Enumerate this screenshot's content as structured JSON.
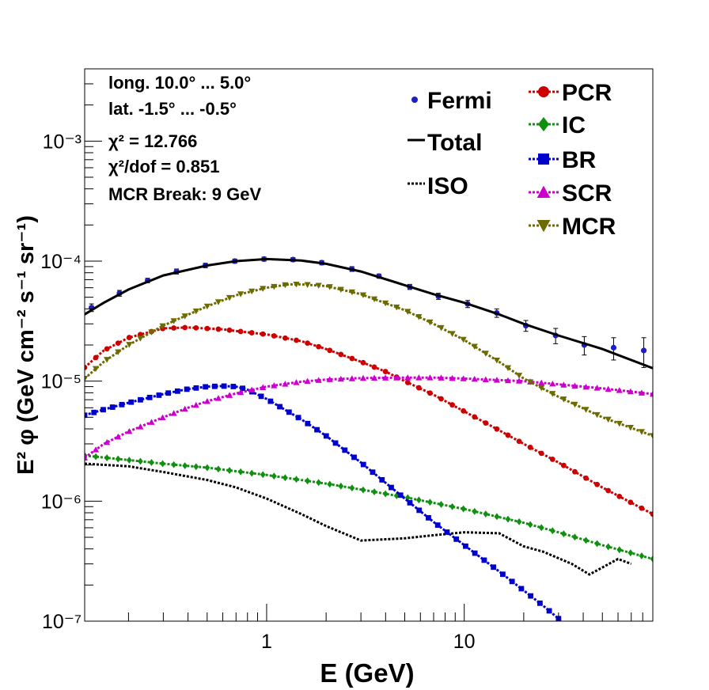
{
  "chart_data": {
    "type": "scatter",
    "xlabel": "E (GeV)",
    "ylabel": "E² φ (GeV cm⁻² s⁻¹ sr⁻¹)",
    "xscale": "log",
    "yscale": "log",
    "xlim": [
      0.12,
      90
    ],
    "ylim": [
      1e-07,
      0.004
    ],
    "x_ticks": [
      {
        "value": 1,
        "label": "1"
      },
      {
        "value": 10,
        "label": "10"
      }
    ],
    "y_ticks": [
      {
        "value": 1e-07,
        "label": "10⁻⁷"
      },
      {
        "value": 1e-06,
        "label": "10⁻⁶"
      },
      {
        "value": 1e-05,
        "label": "10⁻⁵"
      },
      {
        "value": 0.0001,
        "label": "10⁻⁴"
      },
      {
        "value": 0.001,
        "label": "10⁻³"
      }
    ],
    "annotations": [
      "long. 10.0° ... 5.0°",
      "lat. -1.5° ... -0.5°",
      "χ² = 12.766",
      "χ²/dof = 0.851",
      "MCR Break:  9 GeV"
    ],
    "legend_position": "top-right",
    "series": [
      {
        "name": "Fermi",
        "style": "points-errorbars",
        "color": "#1f1fbf",
        "x": [
          0.13,
          0.18,
          0.25,
          0.35,
          0.49,
          0.69,
          0.97,
          1.36,
          1.9,
          2.7,
          3.7,
          5.3,
          7.4,
          10.4,
          14.6,
          20.5,
          29,
          40.5,
          57,
          81
        ],
        "y": [
          4.1e-05,
          5.4e-05,
          6.9e-05,
          8.2e-05,
          9.2e-05,
          0.0001,
          0.000104,
          0.000103,
          9.7e-05,
          8.6e-05,
          7.5e-05,
          6.1e-05,
          5.1e-05,
          4.4e-05,
          3.7e-05,
          2.9e-05,
          2.4e-05,
          2e-05,
          1.9e-05,
          1.8e-05
        ],
        "err": [
          3e-06,
          3e-06,
          3e-06,
          4e-06,
          4e-06,
          4e-06,
          4e-06,
          4e-06,
          4e-06,
          4e-06,
          3e-06,
          3e-06,
          3e-06,
          3e-06,
          3e-06,
          3e-06,
          3.5e-06,
          3.5e-06,
          4e-06,
          5e-06
        ]
      },
      {
        "name": "Total",
        "style": "solid",
        "color": "#000000",
        "x": [
          0.12,
          0.15,
          0.2,
          0.3,
          0.5,
          0.7,
          1,
          1.5,
          2,
          3,
          5,
          7,
          10,
          15,
          20,
          30,
          50,
          90
        ],
        "y": [
          3.6e-05,
          4.5e-05,
          5.8e-05,
          7.6e-05,
          9.2e-05,
          0.0001,
          0.000104,
          0.000101,
          9.5e-05,
          8.2e-05,
          6.3e-05,
          5.3e-05,
          4.5e-05,
          3.6e-05,
          3e-05,
          2.4e-05,
          1.85e-05,
          1.28e-05
        ]
      },
      {
        "name": "ISO",
        "style": "dotted",
        "color": "#000000",
        "x": [
          0.12,
          0.2,
          0.3,
          0.5,
          0.7,
          1,
          1.5,
          2,
          3,
          5,
          7,
          10,
          15,
          20,
          25,
          35,
          43,
          50,
          60,
          70
        ],
        "y": [
          2.05e-06,
          1.95e-06,
          1.75e-06,
          1.5e-06,
          1.3e-06,
          1.05e-06,
          7.8e-07,
          6.2e-07,
          4.7e-07,
          4.9e-07,
          5.2e-07,
          5.5e-07,
          5.4e-07,
          4.2e-07,
          3.8e-07,
          3e-07,
          2.45e-07,
          2.8e-07,
          3.3e-07,
          3e-07
        ]
      },
      {
        "name": "PCR",
        "style": "dotted-marker",
        "marker": "circle",
        "color": "#cc0000",
        "x": [
          0.12,
          0.15,
          0.2,
          0.3,
          0.4,
          0.6,
          0.8,
          1,
          1.5,
          2,
          3,
          4,
          5,
          7,
          10,
          15,
          20,
          30,
          50,
          90
        ],
        "y": [
          1.3e-05,
          1.8e-05,
          2.3e-05,
          2.75e-05,
          2.8e-05,
          2.7e-05,
          2.55e-05,
          2.45e-05,
          2.15e-05,
          1.85e-05,
          1.45e-05,
          1.2e-05,
          1e-05,
          7.7e-06,
          5.6e-06,
          3.9e-06,
          3e-06,
          2.1e-06,
          1.3e-06,
          7.8e-07
        ]
      },
      {
        "name": "IC",
        "style": "dotted-marker",
        "marker": "diamond",
        "color": "#109010",
        "x": [
          0.12,
          0.2,
          0.3,
          0.5,
          1,
          2,
          3,
          5,
          10,
          20,
          30,
          50,
          90
        ],
        "y": [
          2.4e-06,
          2.2e-06,
          2.05e-06,
          1.9e-06,
          1.65e-06,
          1.4e-06,
          1.25e-06,
          1.08e-06,
          8.6e-07,
          6.6e-07,
          5.5e-07,
          4.3e-07,
          3.3e-07
        ]
      },
      {
        "name": "BR",
        "style": "dotted-marker",
        "marker": "square",
        "color": "#0000cc",
        "x": [
          0.12,
          0.15,
          0.2,
          0.3,
          0.4,
          0.5,
          0.6,
          0.7,
          0.8,
          1,
          1.5,
          2,
          3,
          5,
          7,
          10,
          15,
          20,
          25,
          30
        ],
        "y": [
          5.2e-06,
          5.8e-06,
          6.6e-06,
          7.8e-06,
          8.6e-06,
          9e-06,
          9.1e-06,
          9e-06,
          8.5e-06,
          7.1e-06,
          4.8e-06,
          3.5e-06,
          2.1e-06,
          1.05e-06,
          6.7e-07,
          4.3e-07,
          2.6e-07,
          1.8e-07,
          1.35e-07,
          1.05e-07
        ]
      },
      {
        "name": "SCR",
        "style": "dotted-marker",
        "marker": "triangle-up",
        "color": "#cc00cc",
        "x": [
          0.12,
          0.15,
          0.2,
          0.3,
          0.4,
          0.5,
          0.7,
          1,
          1.5,
          2,
          3,
          5,
          7,
          10,
          20,
          30,
          50,
          90
        ],
        "y": [
          2.3e-06,
          3e-06,
          3.8e-06,
          5e-06,
          6e-06,
          6.8e-06,
          7.9e-06,
          9e-06,
          9.9e-06,
          1.03e-05,
          1.06e-05,
          1.07e-05,
          1.07e-05,
          1.05e-05,
          1e-05,
          9.4e-06,
          8.7e-06,
          7.8e-06
        ]
      },
      {
        "name": "MCR",
        "style": "dotted-marker",
        "marker": "triangle-down",
        "color": "#6b6b00",
        "x": [
          0.12,
          0.15,
          0.2,
          0.3,
          0.5,
          0.7,
          1,
          1.3,
          1.5,
          2,
          3,
          5,
          7,
          10,
          15,
          20,
          30,
          50,
          90
        ],
        "y": [
          1.05e-05,
          1.45e-05,
          2e-05,
          2.9e-05,
          4.2e-05,
          5.2e-05,
          6e-05,
          6.4e-05,
          6.4e-05,
          6.2e-05,
          5.3e-05,
          3.9e-05,
          3e-05,
          2.2e-05,
          1.45e-05,
          1.05e-05,
          7.4e-06,
          5e-06,
          3.5e-06
        ]
      }
    ]
  }
}
